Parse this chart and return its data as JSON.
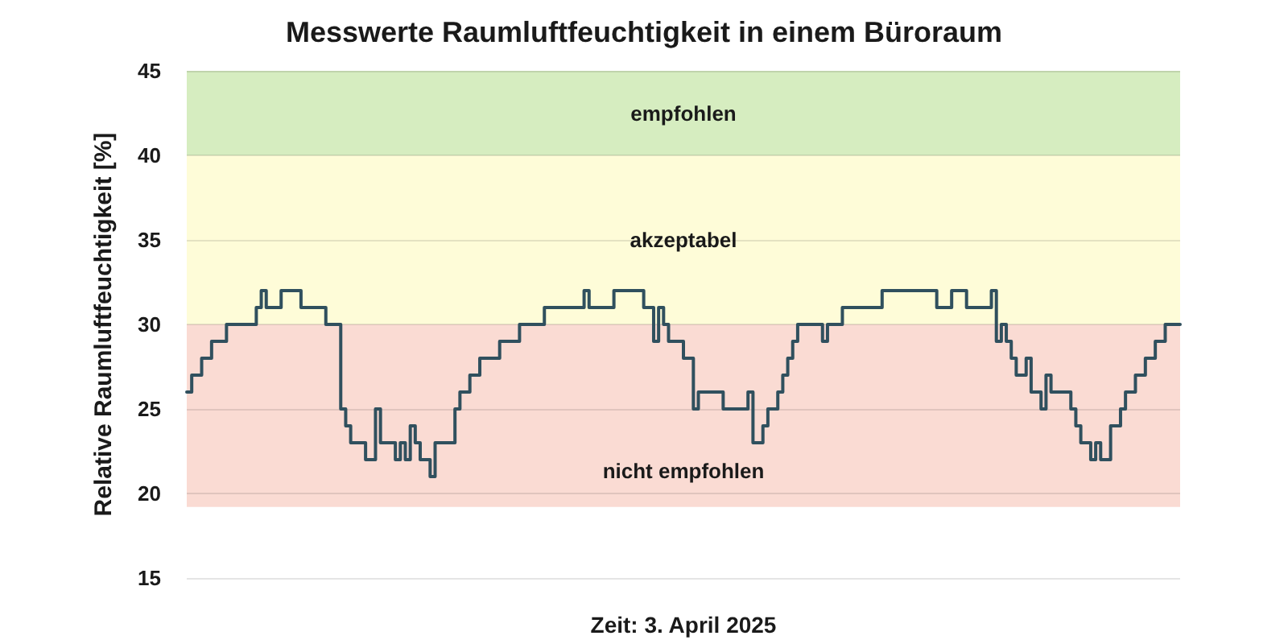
{
  "chart_data": {
    "type": "step",
    "title": "Messwerte Raumluftfeuchtigkeit in einem Büroraum",
    "xlabel": "Zeit: 3. April 2025",
    "ylabel": "Relative Raumluftfeuchtigkeit [%]",
    "categories": [
      null,
      null,
      null,
      null,
      null,
      null,
      null,
      null,
      null,
      null,
      null,
      null,
      null,
      null,
      null,
      null,
      null,
      null,
      null,
      null,
      null,
      null,
      null,
      null,
      null,
      null,
      null,
      null,
      null,
      null,
      null,
      null,
      null,
      null,
      null,
      null,
      null,
      null,
      null,
      null,
      null,
      null,
      null,
      null,
      null,
      null,
      null,
      null,
      null,
      null,
      null,
      null,
      null,
      null,
      null,
      null,
      null,
      null,
      null,
      null,
      null,
      null,
      null,
      null,
      null,
      null,
      null,
      null,
      null,
      null,
      null,
      null,
      null,
      null,
      null,
      null,
      null,
      null,
      null,
      null,
      null,
      null,
      null,
      null,
      null,
      null,
      null,
      null,
      null,
      null,
      null,
      null,
      null,
      null,
      null,
      null,
      null,
      null,
      null,
      null,
      null,
      null,
      null,
      null,
      null,
      null,
      null,
      null,
      null,
      null,
      null,
      null,
      null,
      null,
      null,
      null,
      null,
      null,
      null,
      null,
      null,
      null,
      null,
      null,
      null,
      null,
      null,
      null,
      null,
      null,
      null,
      null,
      null,
      null,
      null,
      null,
      null,
      null,
      null,
      null,
      null,
      null,
      null,
      null,
      null,
      null,
      null,
      null,
      null,
      null,
      null,
      null,
      null,
      null,
      null,
      null,
      null,
      null,
      null,
      null,
      null,
      null,
      null,
      null,
      null,
      null,
      null,
      null,
      null,
      null,
      null,
      null,
      null,
      null,
      null,
      null,
      null,
      null,
      null,
      null,
      null,
      null,
      null,
      null,
      null,
      null,
      null,
      null,
      null,
      null,
      null,
      null,
      null,
      null,
      null,
      null,
      null,
      null,
      null,
      null,
      null
    ],
    "color": "#30505e",
    "values": [
      26,
      27,
      27,
      28,
      28,
      29,
      29,
      29,
      30,
      30,
      30,
      30,
      30,
      30,
      31,
      32,
      31,
      31,
      31,
      32,
      32,
      32,
      32,
      31,
      31,
      31,
      31,
      31,
      30,
      30,
      30,
      25,
      24,
      23,
      23,
      23,
      22,
      22,
      25,
      23,
      23,
      23,
      22,
      23,
      22,
      24,
      23,
      22,
      22,
      21,
      23,
      23,
      23,
      23,
      25,
      26,
      26,
      27,
      27,
      28,
      28,
      28,
      28,
      29,
      29,
      29,
      29,
      30,
      30,
      30,
      30,
      30,
      31,
      31,
      31,
      31,
      31,
      31,
      31,
      31,
      32,
      31,
      31,
      31,
      31,
      31,
      32,
      32,
      32,
      32,
      32,
      32,
      31,
      31,
      29,
      31,
      30,
      29,
      29,
      29,
      28,
      28,
      25,
      26,
      26,
      26,
      26,
      26,
      25,
      25,
      25,
      25,
      25,
      26,
      23,
      23,
      24,
      25,
      25,
      26,
      27,
      28,
      29,
      30,
      30,
      30,
      30,
      30,
      29,
      30,
      30,
      30,
      31,
      31,
      31,
      31,
      31,
      31,
      31,
      31,
      32,
      32,
      32,
      32,
      32,
      32,
      32,
      32,
      32,
      32,
      32,
      31,
      31,
      31,
      32,
      32,
      32,
      31,
      31,
      31,
      31,
      31,
      32,
      29,
      30,
      29,
      28,
      27,
      27,
      28,
      26,
      26,
      25,
      27,
      26,
      26,
      26,
      26,
      25,
      24,
      23,
      23,
      22,
      23,
      22,
      22,
      24,
      24,
      25,
      26,
      26,
      27,
      27,
      28,
      28,
      29,
      29,
      30,
      30,
      30,
      30
    ],
    "ylim": [
      15,
      45
    ],
    "yticks": [
      15,
      20,
      25,
      30,
      35,
      40,
      45
    ],
    "grid": "y",
    "tick_labels": "y",
    "bands": [
      {
        "axis": "y",
        "from": 40,
        "to": 45,
        "label": "empfohlen",
        "color": "#d6edc0"
      },
      {
        "axis": "y",
        "from": 30,
        "to": 40,
        "label": "akzeptabel",
        "color": "#fefcd8"
      },
      {
        "axis": "y",
        "from": 19.2,
        "to": 30,
        "label": "nicht empfohlen",
        "color": "#fadbd3"
      }
    ]
  }
}
